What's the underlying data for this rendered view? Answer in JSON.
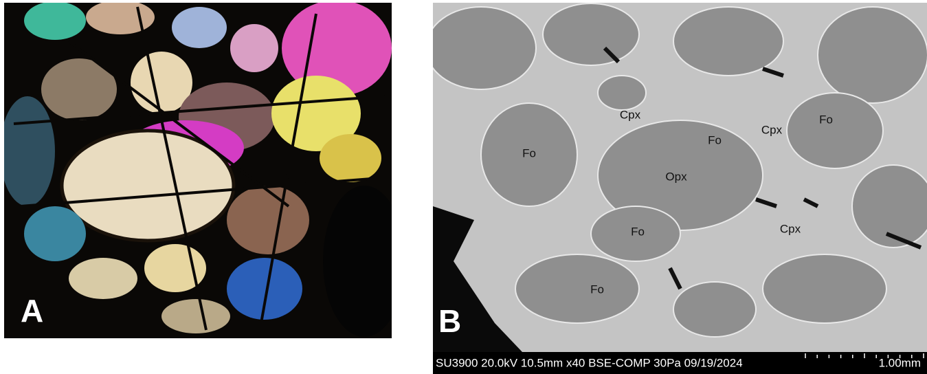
{
  "panels": [
    {
      "label": "A"
    },
    {
      "label": "B",
      "annotations": [
        "Cpx",
        "Fo",
        "Cpx",
        "Fo",
        "Fo",
        "Opx",
        "Cpx",
        "Fo",
        "Fo"
      ],
      "footer": {
        "info": "SU3900 20.0kV 10.5mm x40 BSE-COMP 30Pa 09/19/2024",
        "scale": "1.00mm"
      }
    }
  ]
}
